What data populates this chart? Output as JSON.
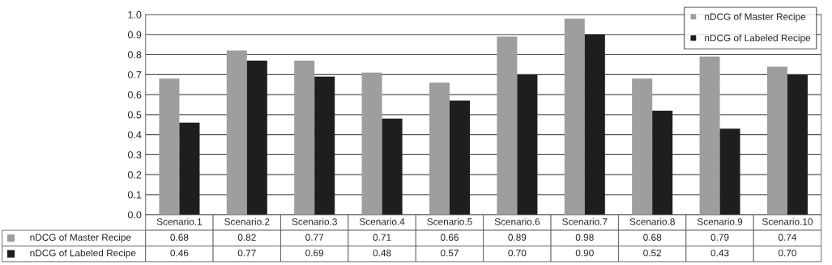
{
  "chart_data": {
    "type": "bar",
    "categories": [
      "Scenario.1",
      "Scenario.2",
      "Scenario.3",
      "Scenario.4",
      "Scenario.5",
      "Scenario.6",
      "Scenario.7",
      "Scenario.8",
      "Scenario.9",
      "Scenario.10"
    ],
    "series": [
      {
        "name": "nDCG of Master Recipe",
        "color": "#9e9e9e",
        "values": [
          0.68,
          0.82,
          0.77,
          0.71,
          0.66,
          0.89,
          0.98,
          0.68,
          0.79,
          0.74
        ],
        "value_labels": [
          "0.68",
          "0.82",
          "0.77",
          "0.71",
          "0.66",
          "0.89",
          "0.98",
          "0.68",
          "0.79",
          "0.74"
        ]
      },
      {
        "name": "nDCG of Labeled Recipe",
        "color": "#1e1e1e",
        "values": [
          0.46,
          0.77,
          0.69,
          0.48,
          0.57,
          0.7,
          0.9,
          0.52,
          0.43,
          0.7
        ],
        "value_labels": [
          "0.46",
          "0.77",
          "0.69",
          "0.48",
          "0.57",
          "0.70",
          "0.90",
          "0.52",
          "0.43",
          "0.70"
        ]
      }
    ],
    "ylim": [
      0,
      1.0
    ],
    "yticks": [
      {
        "value": 0,
        "label": "0.0"
      },
      {
        "value": 0.1,
        "label": "0.1"
      },
      {
        "value": 0.2,
        "label": "0.2"
      },
      {
        "value": 0.3,
        "label": "0.3"
      },
      {
        "value": 0.4,
        "label": "0.4"
      },
      {
        "value": 0.5,
        "label": "0.5"
      },
      {
        "value": 0.6,
        "label": "0.6"
      },
      {
        "value": 0.7,
        "label": "0.7"
      },
      {
        "value": 0.8,
        "label": "0.8"
      },
      {
        "value": 0.9,
        "label": "0.9"
      },
      {
        "value": 1.0,
        "label": "1.0"
      }
    ],
    "grid": "y",
    "legend": "top right"
  }
}
